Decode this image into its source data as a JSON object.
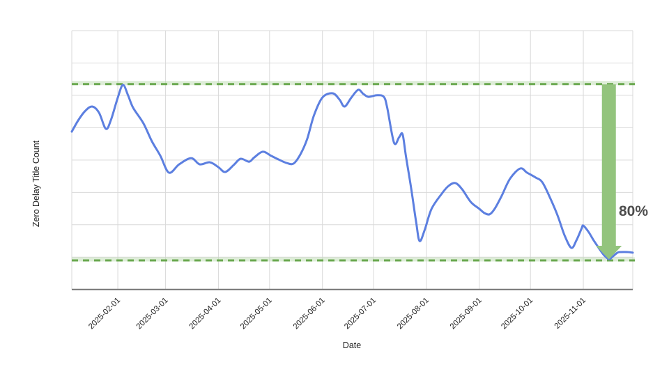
{
  "chart_data": {
    "type": "line",
    "title": "",
    "xlabel": "Date",
    "ylabel": "Zero Delay Title Count",
    "x_range": [
      "2025-01-05",
      "2025-11-30"
    ],
    "x_tick_labels": [
      "2025-02-01",
      "2025-03-01",
      "2025-04-01",
      "2025-05-01",
      "2025-06-01",
      "2025-07-01",
      "2025-08-01",
      "2025-09-01",
      "2025-10-01",
      "2025-11-01"
    ],
    "y_tick_labels_visible": false,
    "series": [
      {
        "name": "Zero Delay Title Count",
        "color": "#5c7fe0",
        "points": [
          [
            "2025-01-05",
            78.4
          ],
          [
            "2025-01-09",
            83.8
          ],
          [
            "2025-01-13",
            87.9
          ],
          [
            "2025-01-17",
            89.8
          ],
          [
            "2025-01-21",
            87.0
          ],
          [
            "2025-01-25",
            79.7
          ],
          [
            "2025-01-28",
            83.8
          ],
          [
            "2025-02-01",
            93.9
          ],
          [
            "2025-02-04",
            99.6
          ],
          [
            "2025-02-07",
            94.9
          ],
          [
            "2025-02-10",
            89.2
          ],
          [
            "2025-02-16",
            82.2
          ],
          [
            "2025-02-21",
            74.0
          ],
          [
            "2025-02-26",
            67.4
          ],
          [
            "2025-03-03",
            59.8
          ],
          [
            "2025-03-09",
            63.6
          ],
          [
            "2025-03-16",
            66.4
          ],
          [
            "2025-03-21",
            63.6
          ],
          [
            "2025-03-27",
            64.5
          ],
          [
            "2025-04-01",
            62.3
          ],
          [
            "2025-04-05",
            60.1
          ],
          [
            "2025-04-10",
            63.3
          ],
          [
            "2025-04-14",
            66.1
          ],
          [
            "2025-04-19",
            64.8
          ],
          [
            "2025-04-22",
            66.7
          ],
          [
            "2025-04-27",
            69.3
          ],
          [
            "2025-05-02",
            67.4
          ],
          [
            "2025-05-07",
            65.5
          ],
          [
            "2025-05-11",
            64.2
          ],
          [
            "2025-05-15",
            63.9
          ],
          [
            "2025-05-19",
            68.0
          ],
          [
            "2025-05-23",
            75.0
          ],
          [
            "2025-05-27",
            85.7
          ],
          [
            "2025-06-01",
            93.9
          ],
          [
            "2025-06-07",
            95.8
          ],
          [
            "2025-06-11",
            93.0
          ],
          [
            "2025-06-14",
            89.8
          ],
          [
            "2025-06-18",
            93.9
          ],
          [
            "2025-06-22",
            97.4
          ],
          [
            "2025-06-25",
            95.5
          ],
          [
            "2025-06-28",
            94.2
          ],
          [
            "2025-07-03",
            94.9
          ],
          [
            "2025-07-07",
            94.2
          ],
          [
            "2025-07-09",
            89.2
          ],
          [
            "2025-07-13",
            73.4
          ],
          [
            "2025-07-16",
            75.9
          ],
          [
            "2025-07-18",
            77.2
          ],
          [
            "2025-07-20",
            67.1
          ],
          [
            "2025-07-23",
            52.9
          ],
          [
            "2025-07-26",
            37.1
          ],
          [
            "2025-07-28",
            28.8
          ],
          [
            "2025-07-31",
            33.9
          ],
          [
            "2025-08-04",
            43.4
          ],
          [
            "2025-08-10",
            50.3
          ],
          [
            "2025-08-14",
            53.8
          ],
          [
            "2025-08-18",
            55.1
          ],
          [
            "2025-08-22",
            52.2
          ],
          [
            "2025-08-27",
            46.5
          ],
          [
            "2025-09-01",
            43.4
          ],
          [
            "2025-09-04",
            41.5
          ],
          [
            "2025-09-07",
            40.9
          ],
          [
            "2025-09-10",
            43.4
          ],
          [
            "2025-09-14",
            49.1
          ],
          [
            "2025-09-19",
            57.0
          ],
          [
            "2025-09-25",
            61.7
          ],
          [
            "2025-09-29",
            59.8
          ],
          [
            "2025-10-04",
            57.6
          ],
          [
            "2025-10-08",
            55.4
          ],
          [
            "2025-10-13",
            47.5
          ],
          [
            "2025-10-17",
            40.2
          ],
          [
            "2025-10-21",
            31.4
          ],
          [
            "2025-10-25",
            25.7
          ],
          [
            "2025-10-28",
            29.2
          ],
          [
            "2025-10-31",
            34.5
          ],
          [
            "2025-11-01",
            35.8
          ],
          [
            "2025-11-04",
            33.0
          ],
          [
            "2025-11-07",
            29.2
          ],
          [
            "2025-11-10",
            25.7
          ],
          [
            "2025-11-13",
            22.5
          ],
          [
            "2025-11-16",
            20.6
          ],
          [
            "2025-11-18",
            21.6
          ],
          [
            "2025-11-21",
            23.5
          ],
          [
            "2025-11-23",
            23.8
          ],
          [
            "2025-11-27",
            23.8
          ],
          [
            "2025-11-30",
            23.5
          ]
        ]
      }
    ],
    "annotations": {
      "upper_dashed_line": {
        "value": 100,
        "color": "#6aa84f",
        "style": "dashed"
      },
      "lower_dashed_line": {
        "value": 20,
        "color": "#6aa84f",
        "style": "dashed"
      },
      "drop_arrow": {
        "date": "2025-11-16",
        "from_value": 100,
        "to_value": 20,
        "color": "#93c47d"
      },
      "drop_label": {
        "text": "80%",
        "color": "#4d4d4d"
      }
    },
    "layout": {
      "background": "#ffffff",
      "grid": true,
      "gridline_color": "#d9d9d9",
      "axis_color": "#757575",
      "legend": "none",
      "x_tick_rotation_deg": -45,
      "h_gridline_intervals": 8
    }
  }
}
